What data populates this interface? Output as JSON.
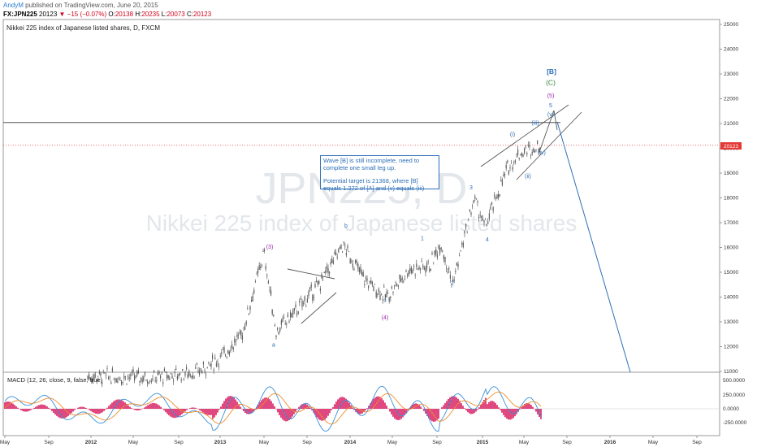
{
  "header": {
    "author": "AndyM",
    "published_text": "published on TradingView.com, June 20, 2015",
    "symbol": "FX:JPN225",
    "last": "20123",
    "change": "▼ −15 (−0.07%)",
    "o_label": "O:",
    "o_value": "20138",
    "h_label": "H:",
    "h_value": "20235",
    "l_label": "L:",
    "l_value": "20073",
    "c_label": "C:",
    "c_value": "20123"
  },
  "chart_title": "Nikkei 225 index of Japanese listed shares, D, FXCM",
  "watermark": {
    "symbol": "JPN225, D",
    "name": "Nikkei 225 index of Japanese listed shares"
  },
  "note": {
    "line1": "Wave [B] is still incomplete, need to complete one small leg up.",
    "line2": "Potential target is 21368, where [B] equals 1.272 of [A] and (v) equals (iii)"
  },
  "last_price_badge": "20123",
  "macd": {
    "label": "MACD (12, 26, close, 9, false, true)",
    "ticks": [
      "500.0000",
      "250.0000",
      "0.0000",
      "-250.0000"
    ]
  },
  "colors": {
    "candle": "#5a5a5a",
    "wave_blue": "#2d6fb7",
    "wave_purple": "#9c27b0",
    "wave_green": "#2e7d32",
    "macd_line": "#3a8fd8",
    "signal_line": "#f08c2a",
    "histogram": "#d81b60",
    "last_price": "#e53935"
  },
  "chart_data": {
    "type": "line",
    "y_ticks": [
      25000,
      24000,
      23000,
      22000,
      21000,
      20000,
      19000,
      18000,
      17000,
      16000,
      15000,
      14000,
      13000,
      12000,
      11000
    ],
    "x_ticks": [
      "May",
      "Sep",
      "2012",
      "May",
      "Sep",
      "2013",
      "May",
      "Sep",
      "2014",
      "May",
      "Sep",
      "2015",
      "May",
      "Sep",
      "2016",
      "May",
      "Sep"
    ],
    "series": [
      {
        "x": [
          "Jan 2012",
          "Jul 2012",
          "Nov 2012",
          "Jan 2013",
          "Mar 2013",
          "May 2013",
          "Jun 2013",
          "Aug 2013",
          "Oct 2013",
          "Dec 2013",
          "Feb 2014",
          "Apr 2014",
          "Jun 2014",
          "Aug 2014",
          "Sep 2014",
          "Oct 2014",
          "Dec 2014",
          "Jan 2015",
          "Mar 2015",
          "Apr 2015",
          "Jun 2015"
        ],
        "values": [
          10800,
          10750,
          11000,
          11500,
          12500,
          15800,
          12600,
          13500,
          14600,
          16100,
          14700,
          14000,
          15100,
          15300,
          16200,
          14500,
          18000,
          16800,
          19200,
          19800,
          20123
        ]
      }
    ],
    "waves": [
      {
        "label": "(3)",
        "value": 15950
      },
      {
        "label": "a",
        "value": 12000
      },
      {
        "label": "b",
        "value": 16800
      },
      {
        "label": "c",
        "value": 13800
      },
      {
        "label": "(4)",
        "value": 13100
      },
      {
        "label": "1",
        "value": 16300
      },
      {
        "label": "2",
        "value": 14500
      },
      {
        "label": "3",
        "value": 18350
      },
      {
        "label": "4",
        "value": 16250
      },
      {
        "label": "(i)",
        "value": 20500
      },
      {
        "label": "(ii)",
        "value": 18800
      },
      {
        "label": "(iii)",
        "value": 20950
      },
      {
        "label": "(iv)",
        "value": 19750
      },
      {
        "label": "(v)",
        "value": 21300
      },
      {
        "label": "5",
        "value": 21650
      },
      {
        "label": "(5)",
        "value": 22050
      },
      {
        "label": "(C)",
        "value": 22550
      },
      {
        "label": "[B]",
        "value": 23000
      }
    ],
    "target": 21368,
    "last_price": 20123,
    "macd": {
      "ylim": [
        -300,
        600
      ],
      "y_ticks": [
        500,
        250,
        0,
        -250
      ]
    }
  }
}
